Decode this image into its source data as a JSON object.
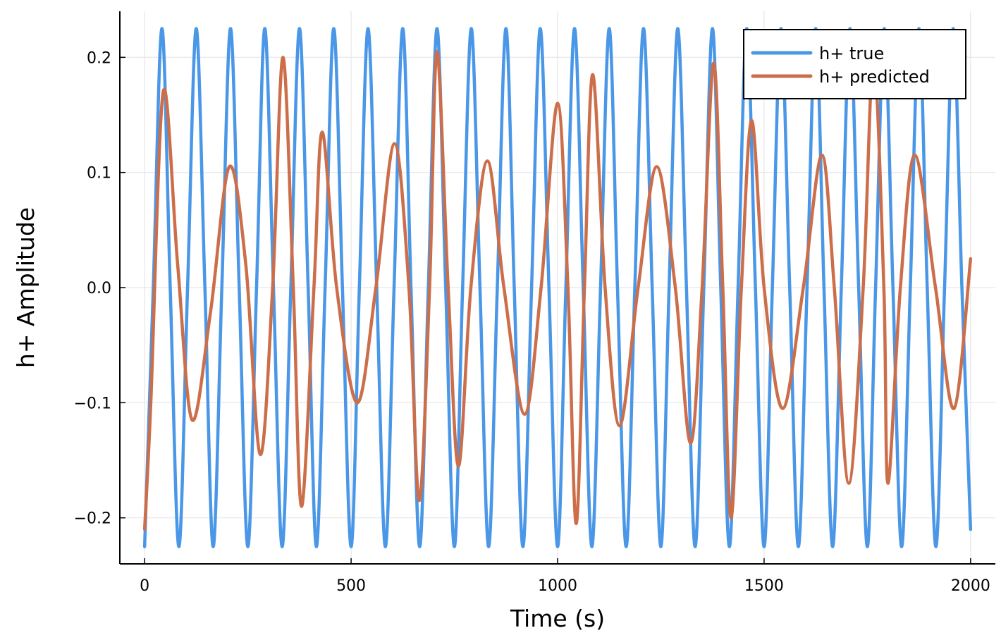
{
  "chart_data": {
    "type": "line",
    "title": "",
    "xlabel": "Time (s)",
    "ylabel": "h+ Amplitude",
    "xlim": [
      -60,
      2060
    ],
    "ylim": [
      -0.24,
      0.24
    ],
    "xticks": [
      0,
      500,
      1000,
      1500,
      2000
    ],
    "xtick_labels": [
      "0",
      "500",
      "1000",
      "1500",
      "2000"
    ],
    "yticks": [
      -0.2,
      -0.1,
      0.0,
      0.1,
      0.2
    ],
    "ytick_labels": [
      "−0.2",
      "−0.1",
      "0.0",
      "0.1",
      "0.2"
    ],
    "grid": true,
    "legend_position": "top-right",
    "series": [
      {
        "name": "h+ true",
        "color": "#4a97e8",
        "x": [
          0,
          21,
          42,
          62,
          83,
          104,
          125,
          146,
          166,
          187,
          208,
          229,
          250,
          271,
          291,
          312,
          333,
          354,
          375,
          396,
          416,
          437,
          458,
          479,
          500,
          520,
          541,
          562,
          583,
          604,
          625,
          645,
          666,
          687,
          708,
          729,
          750,
          770,
          791,
          812,
          833,
          854,
          875,
          895,
          916,
          937,
          958,
          979,
          1000,
          1020,
          1041,
          1062,
          1083,
          1104,
          1125,
          1145,
          1166,
          1187,
          1208,
          1229,
          1250,
          1270,
          1291,
          1312,
          1333,
          1354,
          1375,
          1395,
          1416,
          1437,
          1458,
          1479,
          1500,
          1520,
          1541,
          1562,
          1583,
          1604,
          1625,
          1645,
          1666,
          1687,
          1708,
          1729,
          1750,
          1770,
          1791,
          1812,
          1833,
          1854,
          1875,
          1895,
          1916,
          1937,
          1958,
          1979,
          2000
        ],
        "y": [
          -0.225,
          0,
          0.225,
          0,
          -0.225,
          0,
          0.225,
          0,
          -0.225,
          0,
          0.225,
          0,
          -0.225,
          0,
          0.225,
          0,
          -0.225,
          0,
          0.225,
          0,
          -0.225,
          0,
          0.225,
          0,
          -0.225,
          0,
          0.225,
          0,
          -0.225,
          0,
          0.225,
          0,
          -0.225,
          0,
          0.225,
          0,
          -0.225,
          0,
          0.225,
          0,
          -0.225,
          0,
          0.225,
          0,
          -0.225,
          0,
          0.225,
          0,
          -0.225,
          0,
          0.225,
          0,
          -0.225,
          0,
          0.225,
          0,
          -0.225,
          0,
          0.225,
          0,
          -0.225,
          0,
          0.225,
          0,
          -0.225,
          0,
          0.225,
          0,
          -0.225,
          0,
          0.225,
          0,
          -0.225,
          0,
          0.225,
          0,
          -0.225,
          0,
          0.225,
          0,
          -0.225,
          0,
          0.225,
          0,
          -0.225,
          0,
          0.225,
          0,
          -0.225,
          0,
          0.225,
          0,
          -0.225,
          0,
          0.225,
          0,
          -0.21
        ]
      },
      {
        "name": "h+ predicted",
        "color": "#cc6e4a",
        "x": [
          0,
          15,
          45,
          80,
          115,
          160,
          205,
          245,
          280,
          310,
          335,
          360,
          380,
          410,
          430,
          465,
          515,
          560,
          605,
          640,
          665,
          690,
          708,
          735,
          760,
          790,
          830,
          870,
          920,
          960,
          1000,
          1025,
          1045,
          1065,
          1085,
          1115,
          1150,
          1195,
          1240,
          1285,
          1322,
          1350,
          1378,
          1400,
          1420,
          1445,
          1470,
          1500,
          1545,
          1595,
          1640,
          1670,
          1705,
          1740,
          1765,
          1790,
          1800,
          1830,
          1865,
          1915,
          1960,
          2000
        ],
        "y": [
          -0.21,
          -0.1,
          0.17,
          0.02,
          -0.115,
          -0.02,
          0.105,
          0.02,
          -0.145,
          0.0,
          0.2,
          0.0,
          -0.19,
          0.0,
          0.135,
          0.0,
          -0.1,
          0.0,
          0.125,
          0.0,
          -0.185,
          0.0,
          0.205,
          0.0,
          -0.155,
          0.0,
          0.11,
          0.0,
          -0.11,
          0.0,
          0.16,
          0.0,
          -0.205,
          0.0,
          0.185,
          0.0,
          -0.12,
          0.0,
          0.105,
          0.0,
          -0.135,
          0.0,
          0.195,
          0.0,
          -0.2,
          0.0,
          0.145,
          0.0,
          -0.105,
          0.0,
          0.115,
          0.0,
          -0.17,
          0.0,
          0.2,
          0.0,
          -0.17,
          0.0,
          0.115,
          0.0,
          -0.105,
          0.025
        ]
      }
    ]
  }
}
